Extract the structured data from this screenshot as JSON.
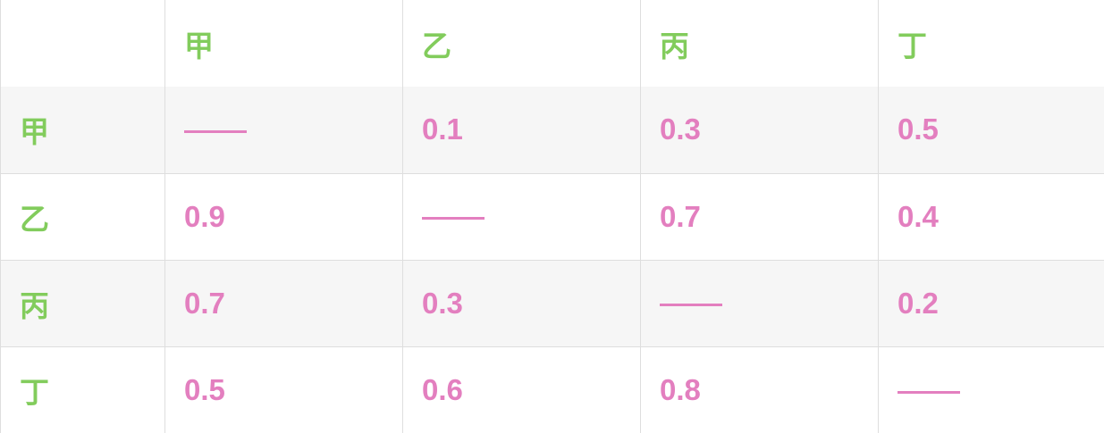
{
  "colors": {
    "label": "#82cc5c",
    "value": "#e37fbf",
    "grid": "#dedede",
    "stripe": "#f6f6f6"
  },
  "table": {
    "corner": "",
    "columns": [
      "甲",
      "乙",
      "丙",
      "丁"
    ],
    "rows": [
      {
        "label": "甲",
        "cells": [
          "——",
          "0.1",
          "0.3",
          "0.5"
        ]
      },
      {
        "label": "乙",
        "cells": [
          "0.9",
          "——",
          "0.7",
          "0.4"
        ]
      },
      {
        "label": "丙",
        "cells": [
          "0.7",
          "0.3",
          "——",
          "0.2"
        ]
      },
      {
        "label": "丁",
        "cells": [
          "0.5",
          "0.6",
          "0.8",
          "——"
        ]
      }
    ]
  }
}
